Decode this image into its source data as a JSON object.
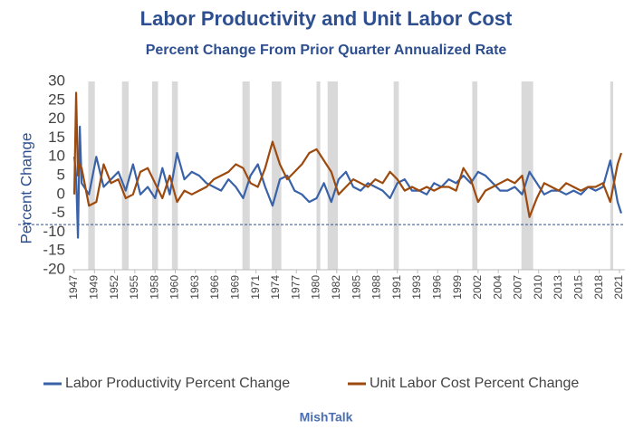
{
  "chart_data": {
    "type": "line",
    "title": "Labor Productivity and Unit Labor Cost",
    "subtitle": "Percent Change From Prior Quarter Annualized Rate",
    "ylabel": "Percent Change",
    "source": "MishTalk",
    "x": [
      1947,
      1947.25,
      1947.5,
      1947.75,
      1948,
      1949,
      1950,
      1951,
      1952,
      1953,
      1954,
      1955,
      1956,
      1957,
      1958,
      1959,
      1960,
      1961,
      1962,
      1963,
      1964,
      1965,
      1966,
      1967,
      1968,
      1969,
      1970,
      1971,
      1972,
      1973,
      1974,
      1975,
      1976,
      1977,
      1978,
      1979,
      1980,
      1981,
      1982,
      1983,
      1984,
      1985,
      1986,
      1987,
      1988,
      1989,
      1990,
      1991,
      1992,
      1993,
      1994,
      1995,
      1996,
      1997,
      1998,
      1999,
      2000,
      2001,
      2002,
      2003,
      2004,
      2005,
      2006,
      2007,
      2008,
      2009,
      2010,
      2011,
      2012,
      2013,
      2014,
      2015,
      2016,
      2017,
      2018,
      2019,
      2020,
      2021,
      2021.5
    ],
    "series": [
      {
        "name": "Labor Productivity Percent Change",
        "color": "#3a62a8",
        "values": [
          10,
          5,
          -11.5,
          18,
          3,
          0,
          10,
          2,
          4,
          6,
          1,
          8,
          0,
          2,
          -1,
          7,
          0,
          11,
          4,
          6,
          5,
          3,
          2,
          1,
          4,
          2,
          -1,
          5,
          8,
          2,
          -3,
          4,
          5,
          1,
          0,
          -2,
          -1,
          3,
          -2,
          4,
          6,
          2,
          1,
          3,
          2,
          1,
          -1,
          3,
          4,
          1,
          1,
          0,
          3,
          2,
          4,
          3,
          5,
          3,
          6,
          5,
          3,
          1,
          1,
          2,
          0,
          6,
          3,
          0,
          1,
          1,
          0,
          1,
          0,
          2,
          1,
          2,
          9,
          -2,
          -5
        ]
      },
      {
        "name": "Unit Labor Cost Percent Change",
        "color": "#9c4a0e",
        "values": [
          0,
          27,
          5,
          8,
          7,
          -3,
          -2,
          8,
          3,
          4,
          -1,
          0,
          6,
          7,
          3,
          -1,
          5,
          -2,
          1,
          0,
          1,
          2,
          4,
          5,
          6,
          8,
          7,
          3,
          2,
          7,
          14,
          8,
          4,
          6,
          8,
          11,
          12,
          9,
          6,
          0,
          2,
          4,
          3,
          2,
          4,
          3,
          6,
          4,
          1,
          2,
          1,
          2,
          1,
          2,
          2,
          1,
          7,
          4,
          -2,
          1,
          2,
          3,
          4,
          3,
          5,
          -6,
          -1,
          3,
          2,
          1,
          3,
          2,
          1,
          2,
          2,
          3,
          -2,
          8,
          11
        ]
      }
    ],
    "recessions": [
      [
        1948.9,
        1949.8
      ],
      [
        1953.5,
        1954.4
      ],
      [
        1957.6,
        1958.4
      ],
      [
        1960.3,
        1961.1
      ],
      [
        1969.9,
        1970.9
      ],
      [
        1973.9,
        1975.2
      ],
      [
        1980.0,
        1980.5
      ],
      [
        1981.5,
        1982.9
      ],
      [
        1990.5,
        1991.2
      ],
      [
        2001.2,
        2001.9
      ],
      [
        2007.9,
        2009.5
      ],
      [
        2020.0,
        2020.4
      ]
    ],
    "reference_line": -8,
    "xlim": [
      1946.75,
      2022
    ],
    "xticks": [
      {
        "value": 1947,
        "label": "1947"
      },
      {
        "value": 1949.75,
        "label": "1949"
      },
      {
        "value": 1952.5,
        "label": "1952"
      },
      {
        "value": 1955.25,
        "label": "1955"
      },
      {
        "value": 1958,
        "label": "1958"
      },
      {
        "value": 1960.75,
        "label": "1960"
      },
      {
        "value": 1963.5,
        "label": "1963"
      },
      {
        "value": 1966.25,
        "label": "1966"
      },
      {
        "value": 1969,
        "label": "1969"
      },
      {
        "value": 1971.75,
        "label": "1971"
      },
      {
        "value": 1974.5,
        "label": "1974"
      },
      {
        "value": 1977.25,
        "label": "1977"
      },
      {
        "value": 1980,
        "label": "1980"
      },
      {
        "value": 1982.75,
        "label": "1982"
      },
      {
        "value": 1985.5,
        "label": "1985"
      },
      {
        "value": 1988.25,
        "label": "1988"
      },
      {
        "value": 1991,
        "label": "1991"
      },
      {
        "value": 1993.75,
        "label": "1993"
      },
      {
        "value": 1996.5,
        "label": "1996"
      },
      {
        "value": 1999.25,
        "label": "1999"
      },
      {
        "value": 2002,
        "label": "2002"
      },
      {
        "value": 2004.75,
        "label": "2004"
      },
      {
        "value": 2007.5,
        "label": "2007"
      },
      {
        "value": 2010.25,
        "label": "2010"
      },
      {
        "value": 2013,
        "label": "2013"
      },
      {
        "value": 2015.75,
        "label": "2015"
      },
      {
        "value": 2018.5,
        "label": "2018"
      },
      {
        "value": 2021.25,
        "label": "2021"
      }
    ],
    "ylim": [
      -20,
      30
    ],
    "yticks": [
      -20,
      -15,
      -10,
      -5,
      0,
      5,
      10,
      15,
      20,
      25,
      30
    ],
    "legend": "bottom"
  }
}
